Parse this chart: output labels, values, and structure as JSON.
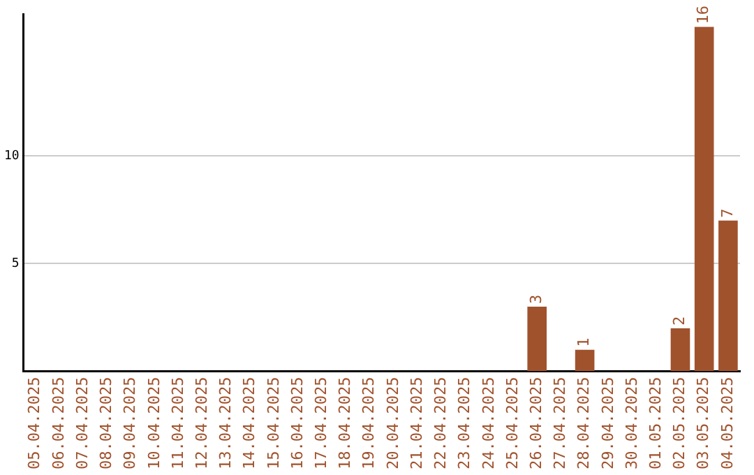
{
  "chart_data": {
    "type": "bar",
    "categories": [
      "05.04.2025",
      "06.04.2025",
      "07.04.2025",
      "08.04.2025",
      "09.04.2025",
      "10.04.2025",
      "11.04.2025",
      "12.04.2025",
      "13.04.2025",
      "14.04.2025",
      "15.04.2025",
      "16.04.2025",
      "17.04.2025",
      "18.04.2025",
      "19.04.2025",
      "20.04.2025",
      "21.04.2025",
      "22.04.2025",
      "23.04.2025",
      "24.04.2025",
      "25.04.2025",
      "26.04.2025",
      "27.04.2025",
      "28.04.2025",
      "29.04.2025",
      "30.04.2025",
      "01.05.2025",
      "02.05.2025",
      "03.05.2025",
      "04.05.2025"
    ],
    "values": [
      0,
      0,
      0,
      0,
      0,
      0,
      0,
      0,
      0,
      0,
      0,
      0,
      0,
      0,
      0,
      0,
      0,
      0,
      0,
      0,
      0,
      3,
      0,
      1,
      0,
      0,
      0,
      2,
      16,
      7
    ],
    "value_labels": [
      null,
      null,
      null,
      null,
      null,
      null,
      null,
      null,
      null,
      null,
      null,
      null,
      null,
      null,
      null,
      null,
      null,
      null,
      null,
      null,
      null,
      "3",
      null,
      "1",
      null,
      null,
      null,
      "2",
      "16",
      "7"
    ],
    "color": "#a0522d",
    "ylim": [
      0,
      16.6
    ],
    "yticks": [
      5,
      10
    ],
    "grid": "y",
    "legend": false
  }
}
